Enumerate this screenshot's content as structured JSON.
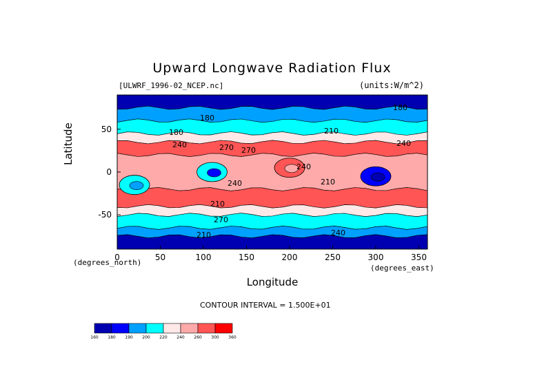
{
  "chart_data": {
    "type": "heatmap",
    "title": "Upward Longwave Radiation Flux",
    "file_label": "[ULWRF_1996-02_NCEP.nc]",
    "units_label": "(units:W/m^2)",
    "xlabel": "Longitude",
    "ylabel": "Latitude",
    "x_units": "(degrees_east)",
    "y_units": "(degrees_north)",
    "xlim": [
      0,
      360
    ],
    "ylim": [
      -90,
      90
    ],
    "x_ticks": [
      "0",
      "50",
      "100",
      "150",
      "200",
      "250",
      "300",
      "350"
    ],
    "y_ticks": [
      "50",
      "0",
      "-50"
    ],
    "contour_interval_text": "CONTOUR INTERVAL = 1.500E+01",
    "contour_labels": [
      "240",
      "270",
      "210",
      "240",
      "270",
      "240",
      "210",
      "240",
      "210",
      "270",
      "240",
      "210",
      "180",
      "180",
      "180"
    ],
    "colorbar": {
      "ticks": [
        "160",
        "180",
        "190",
        "200",
        "220",
        "240",
        "260",
        "300",
        "360"
      ],
      "colors": [
        "#0000b0",
        "#0000ff",
        "#00a0ff",
        "#00ffff",
        "#ffe8e8",
        "#ffaaaa",
        "#ff5555",
        "#ff0000"
      ]
    },
    "zonal_bands": [
      {
        "lat_from": 90,
        "lat_to": 75,
        "value": 175
      },
      {
        "lat_from": 75,
        "lat_to": 60,
        "value": 195
      },
      {
        "lat_from": 60,
        "lat_to": 45,
        "value": 205
      },
      {
        "lat_from": 45,
        "lat_to": 35,
        "value": 230
      },
      {
        "lat_from": 35,
        "lat_to": 20,
        "value": 265
      },
      {
        "lat_from": 20,
        "lat_to": -20,
        "value": 245
      },
      {
        "lat_from": -20,
        "lat_to": -40,
        "value": 275
      },
      {
        "lat_from": -40,
        "lat_to": -50,
        "value": 235
      },
      {
        "lat_from": -50,
        "lat_to": -65,
        "value": 205
      },
      {
        "lat_from": -65,
        "lat_to": -75,
        "value": 195
      },
      {
        "lat_from": -75,
        "lat_to": -90,
        "value": 175
      }
    ],
    "features": [
      {
        "lon": 110,
        "lat": 0,
        "value": 200
      },
      {
        "lon": 300,
        "lat": -5,
        "value": 180
      },
      {
        "lon": 20,
        "lat": -15,
        "value": 205
      },
      {
        "lon": 200,
        "lat": 5,
        "value": 265
      }
    ]
  }
}
